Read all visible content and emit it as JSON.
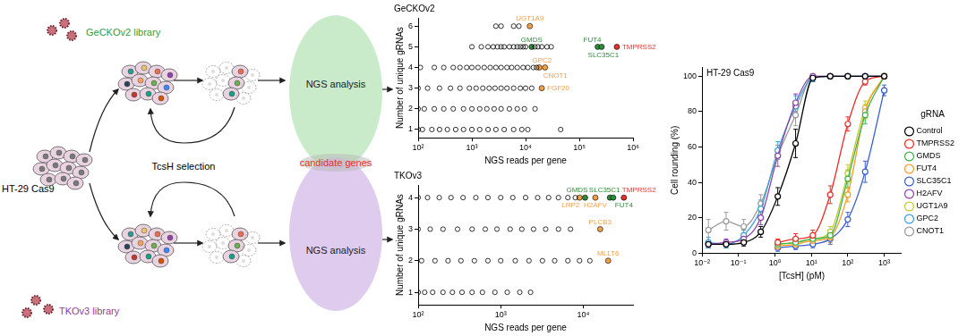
{
  "diagram": {
    "cell_line": "HT-29 Cas9",
    "libraries": [
      "GeCKOv2 library",
      "TKOv3 library"
    ],
    "selection": "TcsH selection",
    "analysis": [
      "NGS analysis",
      "NGS analysis"
    ],
    "overlap": "candidate genes"
  },
  "chart_data": [
    {
      "type": "scatter",
      "title": "GeCKOv2",
      "x_label": "NGS reads per gene",
      "y_label": "Number of unique gRNAs",
      "log": "x",
      "grid": false,
      "marker": "open_circle",
      "color": "#000000",
      "xlim": [
        100,
        1000000
      ],
      "xticks": [
        {
          "value": 100,
          "label": "10²"
        },
        {
          "value": 1000,
          "label": "10³"
        },
        {
          "value": 10000,
          "label": "10⁴"
        },
        {
          "value": 100000,
          "label": "10⁵"
        },
        {
          "value": 1000000,
          "label": "10⁶"
        }
      ],
      "ylim": [
        0.6,
        6.4
      ],
      "yticks": [
        1,
        2,
        3,
        4,
        5,
        6
      ],
      "x": [
        2800,
        3500,
        6000,
        7500,
        1000,
        1500,
        2000,
        2500,
        3000,
        3500,
        4000,
        5000,
        6000,
        7000,
        8000,
        9000,
        10000,
        15000,
        17000,
        20000,
        25000,
        30000,
        110,
        200,
        300,
        450,
        600,
        800,
        1000,
        1300,
        1700,
        2200,
        2800,
        3500,
        4500,
        5500,
        7000,
        9000,
        11000,
        14000,
        16000,
        100,
        150,
        250,
        400,
        600,
        900,
        1200,
        1600,
        2100,
        2700,
        3500,
        4500,
        6000,
        8000,
        10000,
        13000,
        100,
        130,
        200,
        300,
        450,
        700,
        1000,
        1400,
        1900,
        2600,
        3500,
        5000,
        7000,
        9500,
        15000,
        100,
        120,
        180,
        250,
        350,
        500,
        700,
        1000,
        1400,
        2000,
        2800,
        4000,
        6000,
        8500,
        11000,
        45000
      ],
      "values": [
        6,
        6,
        6,
        6,
        5,
        5,
        5,
        5,
        5,
        5,
        5,
        5,
        5,
        5,
        5,
        5,
        5,
        5,
        5,
        5,
        5,
        5,
        4,
        4,
        4,
        4,
        4,
        4,
        4,
        4,
        4,
        4,
        4,
        4,
        4,
        4,
        4,
        4,
        4,
        4,
        4,
        3,
        3,
        3,
        3,
        3,
        3,
        3,
        3,
        3,
        3,
        3,
        3,
        3,
        3,
        3,
        3,
        2,
        2,
        2,
        2,
        2,
        2,
        2,
        2,
        2,
        2,
        2,
        2,
        2,
        2,
        2,
        1,
        1,
        1,
        1,
        1,
        1,
        1,
        1,
        1,
        1,
        1,
        1,
        1,
        1,
        1,
        1
      ],
      "annotations": [
        {
          "text": "UGT1A9",
          "x": 12000,
          "y": 6,
          "color": "#f0a04b"
        },
        {
          "text": "GMDS",
          "x": 13000,
          "y": 5,
          "color": "#2e8b3a"
        },
        {
          "text": "FUT4",
          "x": 220000,
          "y": 5,
          "color": "#2e8b3a"
        },
        {
          "text": "SLC35C1",
          "x": 260000,
          "y": 5,
          "color": "#2e8b3a"
        },
        {
          "text": "TMPRSS2",
          "x": 500000,
          "y": 5,
          "color": "#e8302a"
        },
        {
          "text": "GPC2",
          "x": 18000,
          "y": 4,
          "color": "#f0a04b"
        },
        {
          "text": "CNOT1",
          "x": 23000,
          "y": 4,
          "color": "#f0a04b"
        },
        {
          "text": "FGF20",
          "x": 20000,
          "y": 3,
          "color": "#f0a04b"
        }
      ]
    },
    {
      "type": "scatter",
      "title": "TKOv3",
      "x_label": "NGS reads per gene",
      "y_label": "Number of unique gRNAs",
      "log": "x",
      "grid": false,
      "marker": "open_circle",
      "color": "#000000",
      "xlim": [
        100,
        40000
      ],
      "xticks": [
        {
          "value": 100,
          "label": "10²"
        },
        {
          "value": 1000,
          "label": "10³"
        },
        {
          "value": 10000,
          "label": "10⁴"
        }
      ],
      "ylim": [
        0.6,
        4.4
      ],
      "yticks": [
        1,
        2,
        3,
        4
      ],
      "x": [
        100,
        130,
        180,
        250,
        350,
        500,
        700,
        1000,
        1400,
        2000,
        2800,
        3800,
        5000,
        6500,
        8000,
        100,
        140,
        200,
        300,
        450,
        650,
        900,
        1300,
        1800,
        2500,
        3500,
        5000,
        7000,
        110,
        160,
        230,
        330,
        480,
        700,
        1000,
        1500,
        2200,
        3200,
        4500,
        6500,
        9000,
        12000,
        100,
        120,
        150,
        200,
        260,
        340,
        450,
        600,
        850,
        1200,
        1700,
        2300
      ],
      "values": [
        4,
        4,
        4,
        4,
        4,
        4,
        4,
        4,
        4,
        4,
        4,
        4,
        4,
        4,
        4,
        3,
        3,
        3,
        3,
        3,
        3,
        3,
        3,
        3,
        3,
        3,
        3,
        3,
        2,
        2,
        2,
        2,
        2,
        2,
        2,
        2,
        2,
        2,
        2,
        2,
        2,
        2,
        1,
        1,
        1,
        1,
        1,
        1,
        1,
        1,
        1,
        1,
        1,
        1
      ],
      "annotations": [
        {
          "text": "GMDS",
          "x": 10500,
          "y": 4,
          "color": "#2e8b3a"
        },
        {
          "text": "LRP2",
          "x": 9000,
          "y": 4,
          "color": "#f0a04b"
        },
        {
          "text": "H2AFV",
          "x": 14000,
          "y": 4,
          "color": "#f0a04b"
        },
        {
          "text": "SLC35C1",
          "x": 21000,
          "y": 4,
          "color": "#2e8b3a"
        },
        {
          "text": "FUT4",
          "x": 23000,
          "y": 4,
          "color": "#2e8b3a"
        },
        {
          "text": "TMPRSS2",
          "x": 31000,
          "y": 4,
          "color": "#e8302a"
        },
        {
          "text": "PLCB3",
          "x": 16000,
          "y": 3,
          "color": "#f0a04b"
        },
        {
          "text": "MLLT6",
          "x": 20000,
          "y": 2,
          "color": "#f0a04b"
        }
      ]
    },
    {
      "type": "line",
      "title": "HT-29 Cas9",
      "x_label": "[TcsH] (pM)",
      "y_label": "Cell rounding (%)",
      "log": "x",
      "grid": false,
      "marker": "open_circle",
      "legend": "right",
      "legend_title": "gRNA",
      "xlim": [
        0.01,
        3000
      ],
      "xticks": [
        {
          "value": 0.01,
          "label": "10⁻²"
        },
        {
          "value": 0.1,
          "label": "10⁻¹"
        },
        {
          "value": 1,
          "label": "10⁰"
        },
        {
          "value": 10,
          "label": "10¹"
        },
        {
          "value": 100,
          "label": "10²"
        },
        {
          "value": 1000,
          "label": "10³"
        }
      ],
      "ylim": [
        0,
        105
      ],
      "yticks": [
        0,
        20,
        40,
        60,
        80,
        100
      ],
      "series": [
        {
          "name": "Control",
          "color": "#000000",
          "x": [
            0.015,
            0.046,
            0.14,
            0.41,
            1.2,
            3.7,
            11,
            33,
            100,
            300,
            1000
          ],
          "values": [
            5,
            5,
            6,
            12,
            32,
            62,
            99,
            100,
            100,
            100,
            100
          ],
          "errors": [
            2,
            2,
            2,
            3,
            5,
            8,
            2,
            1,
            1,
            1,
            1
          ]
        },
        {
          "name": "TMPRSS2",
          "color": "#e8302a",
          "x": [
            1.2,
            3.7,
            11,
            33,
            100,
            300,
            1000
          ],
          "values": [
            6,
            8,
            10,
            33,
            73,
            97,
            100
          ],
          "errors": [
            2,
            3,
            3,
            5,
            4,
            2,
            1
          ]
        },
        {
          "name": "GMDS",
          "color": "#3cb44b",
          "x": [
            1.2,
            3.7,
            11,
            33,
            100,
            300,
            1000
          ],
          "values": [
            5,
            6,
            8,
            10,
            42,
            78,
            100
          ],
          "errors": [
            2,
            2,
            2,
            3,
            5,
            5,
            1
          ]
        },
        {
          "name": "FUT4",
          "color": "#f59a23",
          "x": [
            1.2,
            3.7,
            11,
            33,
            100,
            300,
            1000
          ],
          "values": [
            4,
            5,
            7,
            9,
            33,
            80,
            100
          ],
          "errors": [
            2,
            2,
            2,
            3,
            4,
            4,
            1
          ]
        },
        {
          "name": "SLC35C1",
          "color": "#3a5fcd",
          "x": [
            1.2,
            3.7,
            11,
            33,
            100,
            300,
            1000
          ],
          "values": [
            3,
            4,
            5,
            8,
            19,
            46,
            92
          ],
          "errors": [
            2,
            2,
            2,
            3,
            4,
            6,
            3
          ]
        },
        {
          "name": "H2AFV",
          "color": "#8e44ad",
          "x": [
            0.015,
            0.046,
            0.14,
            0.41,
            1.2,
            3.7,
            11,
            33,
            100,
            300,
            1000
          ],
          "values": [
            5,
            6,
            8,
            20,
            55,
            85,
            100,
            100,
            100,
            100,
            100
          ],
          "errors": [
            2,
            2,
            3,
            4,
            6,
            5,
            1,
            1,
            1,
            1,
            1
          ]
        },
        {
          "name": "UGT1A9",
          "color": "#c8c832",
          "x": [
            1.2,
            3.7,
            11,
            33,
            100,
            300,
            1000
          ],
          "values": [
            5,
            6,
            8,
            12,
            45,
            82,
            100
          ],
          "errors": [
            2,
            2,
            2,
            3,
            5,
            4,
            1
          ]
        },
        {
          "name": "GPC2",
          "color": "#3aa0d8",
          "x": [
            0.015,
            0.046,
            0.14,
            0.41,
            1.2,
            3.7,
            11,
            33,
            100,
            300,
            1000
          ],
          "values": [
            6,
            5,
            10,
            25,
            58,
            83,
            99,
            100,
            100,
            100,
            100
          ],
          "errors": [
            3,
            2,
            3,
            5,
            5,
            6,
            2,
            1,
            1,
            1,
            1
          ]
        },
        {
          "name": "CNOT1",
          "color": "#9a9a9a",
          "x": [
            0.015,
            0.046,
            0.14,
            0.41,
            1.2,
            3.7,
            11,
            33,
            100,
            300,
            1000
          ],
          "values": [
            13,
            18,
            15,
            28,
            55,
            78,
            100,
            100,
            100,
            100,
            100
          ],
          "errors": [
            6,
            5,
            4,
            5,
            6,
            6,
            1,
            1,
            1,
            1,
            1
          ]
        }
      ]
    }
  ]
}
